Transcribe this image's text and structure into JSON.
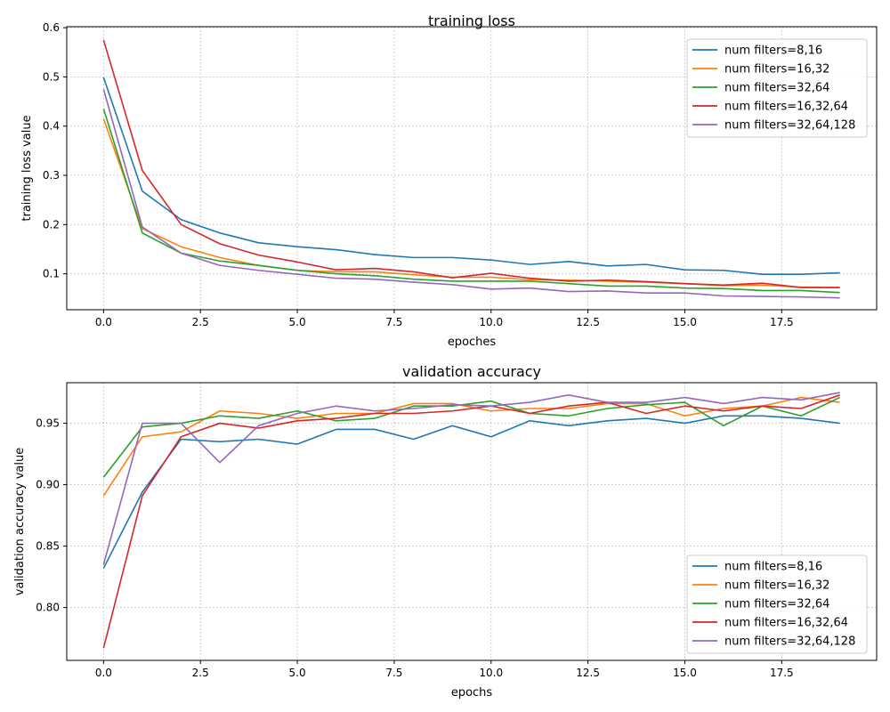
{
  "chart_data": [
    {
      "type": "line",
      "title": "training loss",
      "xlabel": "epoches",
      "ylabel": "training loss value",
      "xlim": [
        -0.95,
        19.95
      ],
      "ylim": [
        0.027,
        0.602
      ],
      "xticks": [
        0.0,
        2.5,
        5.0,
        7.5,
        10.0,
        12.5,
        15.0,
        17.5
      ],
      "xtick_labels": [
        "0.0",
        "2.5",
        "5.0",
        "7.5",
        "10.0",
        "12.5",
        "15.0",
        "17.5"
      ],
      "yticks": [
        0.1,
        0.2,
        0.3,
        0.4,
        0.5,
        0.6
      ],
      "ytick_labels": [
        "0.1",
        "0.2",
        "0.3",
        "0.4",
        "0.5",
        "0.6"
      ],
      "grid": true,
      "legend_position": "top-right",
      "x": [
        0,
        1,
        2,
        3,
        4,
        5,
        6,
        7,
        8,
        9,
        10,
        11,
        12,
        13,
        14,
        15,
        16,
        17,
        18,
        19
      ],
      "series": [
        {
          "name": "num filters=8,16",
          "color": "#1f77b4",
          "values": [
            0.499,
            0.268,
            0.21,
            0.183,
            0.163,
            0.155,
            0.149,
            0.139,
            0.133,
            0.133,
            0.128,
            0.119,
            0.125,
            0.116,
            0.119,
            0.108,
            0.107,
            0.099,
            0.099,
            0.102
          ]
        },
        {
          "name": "num filters=16,32",
          "color": "#ff7f0e",
          "values": [
            0.415,
            0.192,
            0.155,
            0.133,
            0.117,
            0.107,
            0.104,
            0.104,
            0.098,
            0.093,
            0.093,
            0.088,
            0.087,
            0.085,
            0.083,
            0.08,
            0.076,
            0.077,
            0.073,
            0.072
          ]
        },
        {
          "name": "num filters=32,64",
          "color": "#2ca02c",
          "values": [
            0.435,
            0.183,
            0.142,
            0.126,
            0.117,
            0.107,
            0.1,
            0.096,
            0.089,
            0.085,
            0.085,
            0.085,
            0.08,
            0.075,
            0.075,
            0.071,
            0.07,
            0.066,
            0.066,
            0.062
          ]
        },
        {
          "name": "num filters=16,32,64",
          "color": "#d62728",
          "values": [
            0.575,
            0.31,
            0.2,
            0.161,
            0.138,
            0.124,
            0.108,
            0.111,
            0.104,
            0.092,
            0.101,
            0.091,
            0.085,
            0.087,
            0.084,
            0.08,
            0.077,
            0.081,
            0.072,
            0.072
          ]
        },
        {
          "name": "num filters=32,64,128",
          "color": "#9467bd",
          "values": [
            0.475,
            0.195,
            0.142,
            0.117,
            0.107,
            0.099,
            0.091,
            0.089,
            0.083,
            0.078,
            0.069,
            0.071,
            0.064,
            0.065,
            0.061,
            0.061,
            0.055,
            0.054,
            0.053,
            0.051
          ]
        }
      ]
    },
    {
      "type": "line",
      "title": "validation accuracy",
      "xlabel": "epochs",
      "ylabel": "validation accuracy value",
      "xlim": [
        -0.95,
        19.95
      ],
      "ylim": [
        0.757,
        0.983
      ],
      "xticks": [
        0.0,
        2.5,
        5.0,
        7.5,
        10.0,
        12.5,
        15.0,
        17.5
      ],
      "xtick_labels": [
        "0.0",
        "2.5",
        "5.0",
        "7.5",
        "10.0",
        "12.5",
        "15.0",
        "17.5"
      ],
      "yticks": [
        0.8,
        0.85,
        0.9,
        0.95
      ],
      "ytick_labels": [
        "0.80",
        "0.85",
        "0.90",
        "0.95"
      ],
      "grid": true,
      "legend_position": "bottom-right",
      "x": [
        0,
        1,
        2,
        3,
        4,
        5,
        6,
        7,
        8,
        9,
        10,
        11,
        12,
        13,
        14,
        15,
        16,
        17,
        18,
        19
      ],
      "series": [
        {
          "name": "num filters=8,16",
          "color": "#1f77b4",
          "values": [
            0.832,
            0.894,
            0.937,
            0.935,
            0.937,
            0.933,
            0.945,
            0.945,
            0.937,
            0.948,
            0.939,
            0.952,
            0.948,
            0.952,
            0.954,
            0.95,
            0.956,
            0.956,
            0.954,
            0.95
          ]
        },
        {
          "name": "num filters=16,32",
          "color": "#ff7f0e",
          "values": [
            0.891,
            0.939,
            0.943,
            0.96,
            0.958,
            0.954,
            0.958,
            0.958,
            0.966,
            0.966,
            0.96,
            0.962,
            0.962,
            0.966,
            0.966,
            0.956,
            0.962,
            0.964,
            0.971,
            0.967
          ]
        },
        {
          "name": "num filters=32,64",
          "color": "#2ca02c",
          "values": [
            0.906,
            0.947,
            0.95,
            0.956,
            0.954,
            0.96,
            0.952,
            0.954,
            0.964,
            0.964,
            0.968,
            0.958,
            0.956,
            0.962,
            0.965,
            0.967,
            0.948,
            0.964,
            0.956,
            0.971
          ]
        },
        {
          "name": "num filters=16,32,64",
          "color": "#d62728",
          "values": [
            0.767,
            0.891,
            0.939,
            0.95,
            0.946,
            0.952,
            0.954,
            0.958,
            0.958,
            0.96,
            0.964,
            0.958,
            0.964,
            0.967,
            0.958,
            0.964,
            0.96,
            0.964,
            0.962,
            0.973
          ]
        },
        {
          "name": "num filters=32,64,128",
          "color": "#9467bd",
          "values": [
            0.835,
            0.95,
            0.95,
            0.918,
            0.948,
            0.958,
            0.964,
            0.96,
            0.962,
            0.965,
            0.964,
            0.967,
            0.973,
            0.967,
            0.967,
            0.971,
            0.966,
            0.971,
            0.969,
            0.975
          ]
        }
      ]
    }
  ]
}
